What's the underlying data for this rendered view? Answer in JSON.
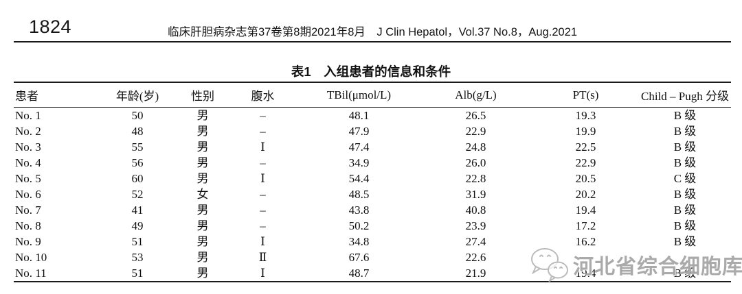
{
  "page": {
    "page_number": "1824",
    "journal_line": "临床肝胆病杂志第37卷第8期2021年8月　J Clin Hepatol，Vol.37 No.8，Aug.2021"
  },
  "table": {
    "title": "表1　入组患者的信息和条件",
    "columns": [
      "患者",
      "年龄(岁)",
      "性别",
      "腹水",
      "TBil(μmol/L)",
      "Alb(g/L)",
      "PT(s)",
      "Child – Pugh 分级"
    ],
    "rows": [
      [
        "No. 1",
        "50",
        "男",
        "–",
        "48.1",
        "26.5",
        "19.3",
        "B 级"
      ],
      [
        "No. 2",
        "48",
        "男",
        "–",
        "47.9",
        "22.9",
        "19.9",
        "B 级"
      ],
      [
        "No. 3",
        "55",
        "男",
        "Ⅰ",
        "47.4",
        "24.8",
        "22.5",
        "B 级"
      ],
      [
        "No. 4",
        "56",
        "男",
        "–",
        "34.9",
        "26.0",
        "22.9",
        "B 级"
      ],
      [
        "No. 5",
        "60",
        "男",
        "Ⅰ",
        "54.4",
        "22.8",
        "20.5",
        "C 级"
      ],
      [
        "No. 6",
        "52",
        "女",
        "–",
        "48.5",
        "31.9",
        "20.2",
        "B 级"
      ],
      [
        "No. 7",
        "41",
        "男",
        "–",
        "43.8",
        "40.8",
        "19.4",
        "B 级"
      ],
      [
        "No. 8",
        "49",
        "男",
        "–",
        "50.2",
        "23.9",
        "17.2",
        "B 级"
      ],
      [
        "No. 9",
        "51",
        "男",
        "Ⅰ",
        "34.8",
        "27.4",
        "16.2",
        "B 级"
      ],
      [
        "No. 10",
        "53",
        "男",
        "Ⅱ",
        "67.6",
        "22.6",
        "",
        ""
      ],
      [
        "No. 11",
        "51",
        "男",
        "Ⅰ",
        "48.7",
        "21.9",
        "19.4",
        "B 级"
      ]
    ]
  },
  "watermark": {
    "text": "河北省综合细胞库",
    "icon": "wechat-icon",
    "color": "#a6a6a6"
  },
  "colors": {
    "text": "#111111",
    "rule": "#1a1a1a",
    "background": "#ffffff"
  }
}
